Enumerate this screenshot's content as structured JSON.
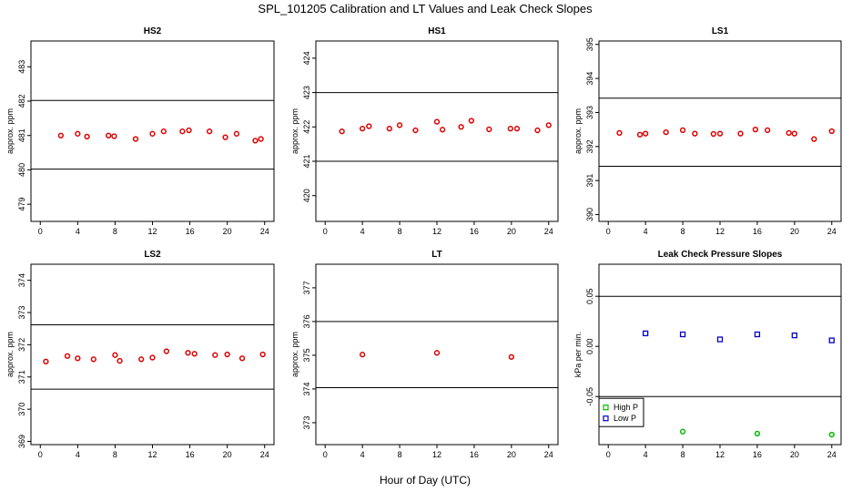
{
  "title": "SPL_101205  Calibration and LT Values and Leak Check Slopes",
  "x_axis_label": "Hour of Day (UTC)",
  "chart_data": [
    {
      "type": "scatter",
      "title": "HS2",
      "ylabel": "approx. ppm",
      "xlim": [
        -1,
        25
      ],
      "ylim": [
        478.5,
        483.75
      ],
      "xticks": [
        0,
        4,
        8,
        12,
        16,
        20,
        24
      ],
      "yticks": [
        479,
        480,
        481,
        482,
        483
      ],
      "hlines": [
        482.02,
        480.02
      ],
      "series": [
        {
          "name": "HS2",
          "color": "#dd0000",
          "marker": "circle",
          "x": [
            2.2,
            4.0,
            5.0,
            7.3,
            7.9,
            10.2,
            12.0,
            13.2,
            15.2,
            15.9,
            18.1,
            19.8,
            21.0,
            23.0,
            23.6
          ],
          "y": [
            481.0,
            481.05,
            480.97,
            481.0,
            480.98,
            480.9,
            481.05,
            481.12,
            481.12,
            481.15,
            481.12,
            480.95,
            481.05,
            480.85,
            480.9
          ]
        }
      ]
    },
    {
      "type": "scatter",
      "title": "HS1",
      "ylabel": "approx. ppm",
      "xlim": [
        -1,
        25
      ],
      "ylim": [
        419.25,
        424.5
      ],
      "xticks": [
        0,
        4,
        8,
        12,
        16,
        20,
        24
      ],
      "yticks": [
        420,
        421,
        422,
        423,
        424
      ],
      "hlines": [
        423.0,
        421.0
      ],
      "series": [
        {
          "name": "HS1",
          "color": "#dd0000",
          "marker": "circle",
          "x": [
            1.8,
            4.0,
            4.7,
            6.9,
            8.0,
            9.7,
            12.0,
            12.6,
            14.6,
            15.7,
            17.6,
            19.9,
            20.6,
            22.8,
            24.0
          ],
          "y": [
            421.87,
            421.95,
            422.02,
            421.95,
            422.05,
            421.9,
            422.15,
            421.92,
            422.0,
            422.18,
            421.93,
            421.95,
            421.95,
            421.9,
            422.05
          ]
        }
      ]
    },
    {
      "type": "scatter",
      "title": "LS1",
      "ylabel": "approx. ppm",
      "xlim": [
        -1,
        25
      ],
      "ylim": [
        389.8,
        395.1
      ],
      "xticks": [
        0,
        4,
        8,
        12,
        16,
        20,
        24
      ],
      "yticks": [
        390,
        391,
        392,
        393,
        394,
        395
      ],
      "hlines": [
        393.42,
        391.42
      ],
      "series": [
        {
          "name": "LS1",
          "color": "#dd0000",
          "marker": "circle",
          "x": [
            1.2,
            3.4,
            4.0,
            6.2,
            8.0,
            9.3,
            11.3,
            12.0,
            14.2,
            15.8,
            17.1,
            19.4,
            20.0,
            22.1,
            24.0
          ],
          "y": [
            392.4,
            392.35,
            392.38,
            392.42,
            392.48,
            392.38,
            392.37,
            392.38,
            392.38,
            392.5,
            392.48,
            392.4,
            392.38,
            392.22,
            392.45
          ]
        }
      ]
    },
    {
      "type": "scatter",
      "title": "LS2",
      "ylabel": "approx. ppm",
      "xlim": [
        -1,
        25
      ],
      "ylim": [
        368.9,
        374.5
      ],
      "xticks": [
        0,
        4,
        8,
        12,
        16,
        20,
        24
      ],
      "yticks": [
        369,
        370,
        371,
        372,
        373,
        374
      ],
      "hlines": [
        372.62,
        370.62
      ],
      "series": [
        {
          "name": "LS2",
          "color": "#dd0000",
          "marker": "circle",
          "x": [
            0.6,
            2.9,
            4.0,
            5.7,
            8.0,
            8.5,
            10.8,
            12.0,
            13.5,
            15.8,
            16.5,
            18.7,
            20.0,
            21.6,
            23.8
          ],
          "y": [
            371.48,
            371.65,
            371.58,
            371.55,
            371.68,
            371.5,
            371.55,
            371.6,
            371.8,
            371.75,
            371.72,
            371.68,
            371.7,
            371.58,
            371.7
          ]
        }
      ]
    },
    {
      "type": "scatter",
      "title": "LT",
      "ylabel": "approx. ppm",
      "xlim": [
        -1,
        25
      ],
      "ylim": [
        372.35,
        377.7
      ],
      "xticks": [
        0,
        4,
        8,
        12,
        16,
        20,
        24
      ],
      "yticks": [
        373,
        374,
        375,
        376,
        377
      ],
      "hlines": [
        376.0,
        374.04
      ],
      "series": [
        {
          "name": "LT",
          "color": "#dd0000",
          "marker": "circle",
          "x": [
            4.0,
            12.0,
            20.0
          ],
          "y": [
            375.02,
            375.07,
            374.95
          ]
        }
      ]
    },
    {
      "type": "scatter",
      "title": "Leak Check Pressure Slopes",
      "ylabel": "kPa per min.",
      "xlim": [
        -1,
        25
      ],
      "ylim": [
        -0.098,
        0.082
      ],
      "xticks": [
        0,
        4,
        8,
        12,
        16,
        20,
        24
      ],
      "yticks": [
        -0.05,
        0.0,
        0.05
      ],
      "ytick_labels": [
        "-0.05",
        "0.00",
        "0.05"
      ],
      "hlines": [
        0.05,
        -0.05
      ],
      "legend": {
        "position": "bottom-left",
        "entries": [
          "High P",
          "Low P"
        ]
      },
      "series": [
        {
          "name": "High P",
          "color": "#00bb00",
          "marker": "circle",
          "x": [
            8,
            16,
            24
          ],
          "y": [
            -0.085,
            -0.087,
            -0.088
          ]
        },
        {
          "name": "Low P",
          "color": "#0000cc",
          "marker": "square",
          "x": [
            4,
            8,
            12,
            16,
            20,
            24
          ],
          "y": [
            0.013,
            0.012,
            0.007,
            0.012,
            0.011,
            0.006
          ]
        }
      ]
    }
  ]
}
